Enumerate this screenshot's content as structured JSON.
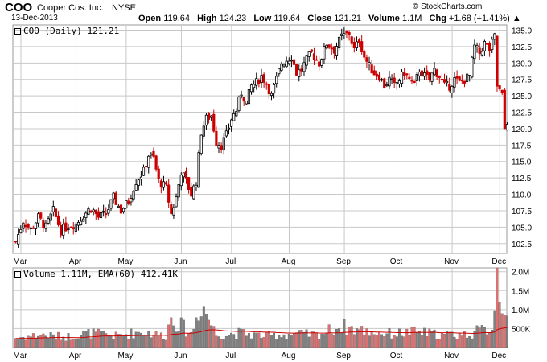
{
  "header": {
    "symbol": "COO",
    "company": "Cooper Cos. Inc.",
    "exchange": "NYSE",
    "date": "13-Dec-2013",
    "brand": "© StockCharts.com",
    "open_label": "Open",
    "open": "119.64",
    "high_label": "High",
    "high": "124.23",
    "low_label": "Low",
    "low": "119.64",
    "close_label": "Close",
    "close": "121.21",
    "volume_label": "Volume",
    "volume": "1.1M",
    "chg_label": "Chg",
    "chg": "+1.68 (+1.41%) ▲"
  },
  "colors": {
    "up": "#000000",
    "down": "#cc0000",
    "ema": "#cc0000",
    "grid": "#c8c8c8",
    "vol_up": "#808080",
    "vol_down": "#e07070"
  },
  "chart_data": [
    {
      "type": "candlestick",
      "legend": "COO (Daily) 121.21",
      "months": [
        "Mar",
        "Apr",
        "May",
        "Jun",
        "Jul",
        "Aug",
        "Sep",
        "Oct",
        "Nov",
        "Dec"
      ],
      "y_ticks": [
        102.5,
        105.0,
        107.5,
        110.0,
        112.5,
        115.0,
        117.5,
        120.0,
        122.5,
        125.0,
        127.5,
        130.0,
        132.5,
        135.0
      ],
      "ylim": [
        101.0,
        135.8
      ],
      "grid": true,
      "anchors": [
        [
          0,
          102.8
        ],
        [
          3,
          106.0
        ],
        [
          6,
          104.6
        ],
        [
          9,
          106.5
        ],
        [
          12,
          105.0
        ],
        [
          15,
          107.5
        ],
        [
          18,
          104.5
        ],
        [
          21,
          105.2
        ],
        [
          24,
          105.5
        ],
        [
          27,
          106.8
        ],
        [
          30,
          108.0
        ],
        [
          33,
          106.5
        ],
        [
          36,
          107.0
        ],
        [
          39,
          109.5
        ],
        [
          42,
          107.5
        ],
        [
          45,
          109.0
        ],
        [
          48,
          112.0
        ],
        [
          51,
          113.5
        ],
        [
          53,
          116.0
        ],
        [
          55,
          115.5
        ],
        [
          57,
          112.0
        ],
        [
          60,
          111.0
        ],
        [
          62,
          107.0
        ],
        [
          64,
          109.5
        ],
        [
          66,
          113.5
        ],
        [
          68,
          112.0
        ],
        [
          70,
          110.0
        ],
        [
          72,
          112.0
        ],
        [
          74,
          119.5
        ],
        [
          76,
          121.5
        ],
        [
          78,
          122.0
        ],
        [
          80,
          118.0
        ],
        [
          82,
          117.5
        ],
        [
          84,
          119.0
        ],
        [
          86,
          121.5
        ],
        [
          88,
          122.8
        ],
        [
          90,
          125.5
        ],
        [
          92,
          124.0
        ],
        [
          94,
          126.5
        ],
        [
          96,
          127.0
        ],
        [
          98,
          128.0
        ],
        [
          100,
          127.0
        ],
        [
          102,
          125.0
        ],
        [
          104,
          127.5
        ],
        [
          106,
          130.0
        ],
        [
          108,
          130.5
        ],
        [
          110,
          131.0
        ],
        [
          112,
          128.5
        ],
        [
          114,
          129.0
        ],
        [
          116,
          130.5
        ],
        [
          118,
          131.5
        ],
        [
          121,
          130.0
        ],
        [
          124,
          133.0
        ],
        [
          127,
          132.0
        ],
        [
          130,
          134.0
        ],
        [
          133,
          134.5
        ],
        [
          135,
          132.0
        ],
        [
          137,
          133.5
        ],
        [
          139,
          131.0
        ],
        [
          141,
          129.5
        ],
        [
          143,
          128.5
        ],
        [
          145,
          128.0
        ],
        [
          147,
          126.5
        ],
        [
          149,
          127.5
        ],
        [
          151,
          126.5
        ],
        [
          153,
          127.5
        ],
        [
          155,
          128.5
        ],
        [
          157,
          127.5
        ],
        [
          159,
          126.5
        ],
        [
          161,
          129.0
        ],
        [
          163,
          128.0
        ],
        [
          165,
          127.5
        ],
        [
          167,
          129.0
        ],
        [
          169,
          128.0
        ],
        [
          171,
          126.5
        ],
        [
          173,
          126.5
        ],
        [
          175,
          127.5
        ],
        [
          177,
          127.0
        ],
        [
          179,
          127.5
        ],
        [
          181,
          128.0
        ],
        [
          183,
          132.5
        ],
        [
          185,
          131.5
        ],
        [
          187,
          133.0
        ],
        [
          189,
          132.0
        ],
        [
          191,
          134.0
        ],
        [
          192,
          126.5
        ],
        [
          194,
          125.0
        ],
        [
          195,
          120.0
        ],
        [
          196,
          121.2
        ]
      ],
      "note_cut": [
        190,
        191
      ]
    },
    {
      "type": "bar",
      "legend": "Volume 1.11M, EMA(60) 412.41K",
      "y_ticks": [
        {
          "v": 500000,
          "label": "500K"
        },
        {
          "v": 1000000,
          "label": "1.0M"
        },
        {
          "v": 1500000,
          "label": "1.5M"
        },
        {
          "v": 2000000,
          "label": "2.0M"
        }
      ],
      "ylim": [
        0,
        2100000
      ],
      "volume_shape": [
        [
          0,
          250000
        ],
        [
          10,
          330000
        ],
        [
          20,
          280000
        ],
        [
          30,
          380000
        ],
        [
          40,
          300000
        ],
        [
          50,
          420000
        ],
        [
          60,
          300000
        ],
        [
          62,
          800000
        ],
        [
          70,
          350000
        ],
        [
          74,
          1200000
        ],
        [
          80,
          330000
        ],
        [
          90,
          380000
        ],
        [
          100,
          300000
        ],
        [
          110,
          360000
        ],
        [
          120,
          330000
        ],
        [
          130,
          560000
        ],
        [
          140,
          420000
        ],
        [
          150,
          360000
        ],
        [
          160,
          400000
        ],
        [
          170,
          330000
        ],
        [
          180,
          350000
        ],
        [
          186,
          450000
        ],
        [
          190,
          520000
        ],
        [
          192,
          1950000
        ],
        [
          193,
          1600000
        ],
        [
          194,
          1250000
        ],
        [
          196,
          1110000
        ]
      ],
      "ema_end": 412410
    }
  ]
}
